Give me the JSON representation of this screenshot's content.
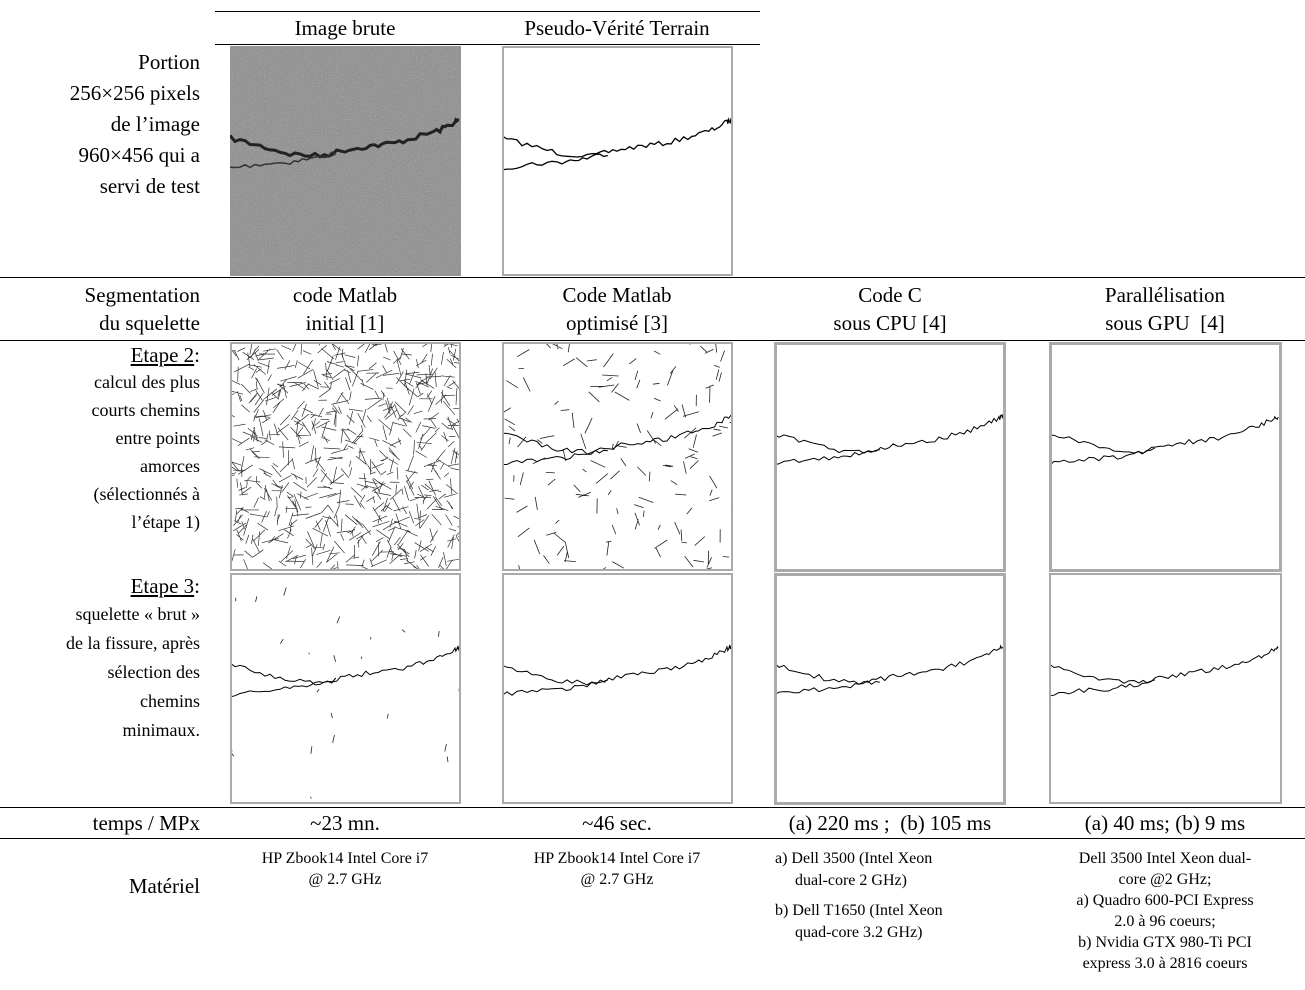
{
  "header": {
    "columns": [
      "Image brute",
      "Pseudo-Vérité Terrain"
    ]
  },
  "portion": {
    "lines": [
      "Portion",
      "256×256 pixels",
      "de l’image",
      "960×456 qui a",
      "servi de test"
    ]
  },
  "segmentation": {
    "label": [
      "Segmentation",
      "du squelette"
    ],
    "columns": [
      [
        "code Matlab",
        "initial [1]"
      ],
      [
        "Code Matlab",
        "optimisé [3]"
      ],
      [
        "Code C",
        "sous CPU [4]"
      ],
      [
        "Parallélisation",
        "sous GPU  [4]"
      ]
    ]
  },
  "steps": [
    {
      "title": "Etape 2:",
      "lines": [
        "calcul des plus",
        "courts chemins",
        "entre points",
        "amorces",
        "(sélectionnés à",
        "l’étape 1)"
      ]
    },
    {
      "title": "Etape 3:",
      "lines": [
        "squelette « brut »",
        "de la fissure, après",
        "sélection des",
        "chemins",
        "minimaux."
      ]
    }
  ],
  "timing": {
    "label": "temps / MPx",
    "values": [
      "~23 mn.",
      "~46 sec.",
      "(a) 220 ms ;  (b) 105 ms",
      "(a) 40 ms; (b) 9 ms"
    ]
  },
  "hardware": {
    "label": "Matériel",
    "values": [
      [
        "HP Zbook14 Intel Core i7",
        "@ 2.7 GHz"
      ],
      [
        "HP Zbook14 Intel Core i7",
        "@ 2.7 GHz"
      ],
      [
        "a) Dell 3500 (Intel Xeon",
        "dual-core 2 GHz)",
        "b) Dell T1650 (Intel Xeon",
        "quad-core 3.2 GHz)"
      ],
      [
        "Dell 3500 Intel Xeon dual-",
        "core @2 GHz;",
        "a) Quadro 600-PCI Express",
        "2.0 à 96 coeurs;",
        "b) Nvidia GTX 980-Ti PCI",
        "express 3.0 à 2816 coeurs"
      ]
    ]
  }
}
